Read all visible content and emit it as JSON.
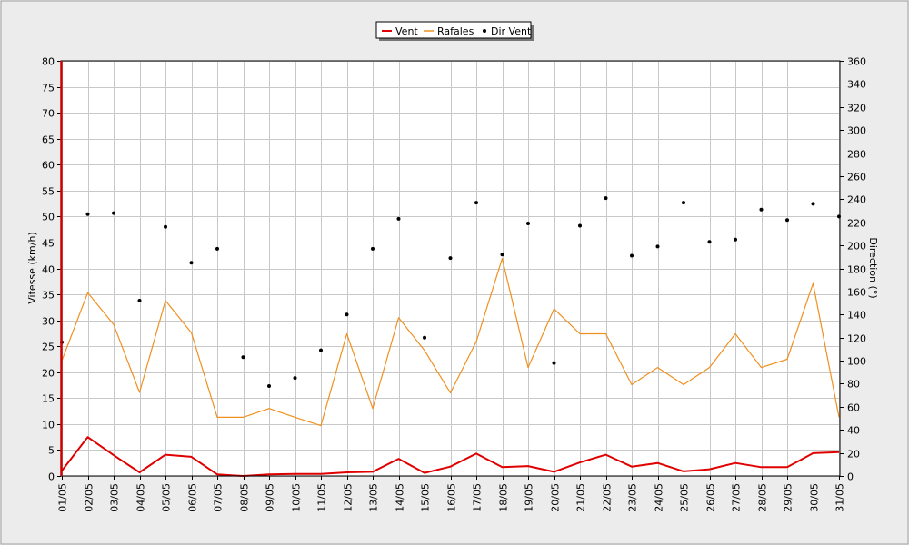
{
  "chart_data": {
    "type": "line",
    "categories": [
      "01/05",
      "02/05",
      "03/05",
      "04/05",
      "05/05",
      "06/05",
      "07/05",
      "08/05",
      "09/05",
      "10/05",
      "11/05",
      "12/05",
      "13/05",
      "14/05",
      "15/05",
      "16/05",
      "17/05",
      "18/05",
      "19/05",
      "20/05",
      "21/05",
      "22/05",
      "23/05",
      "24/05",
      "25/05",
      "26/05",
      "27/05",
      "28/05",
      "29/05",
      "30/05",
      "31/05"
    ],
    "ylabel": "Vitesse (km/h)",
    "ylim": [
      0,
      80
    ],
    "yticks": [
      0,
      5,
      10,
      15,
      20,
      25,
      30,
      35,
      40,
      45,
      50,
      55,
      60,
      65,
      70,
      75,
      80
    ],
    "y2label": "Direction (°)",
    "y2lim": [
      0,
      360
    ],
    "y2ticks": [
      0,
      20,
      40,
      60,
      80,
      100,
      120,
      140,
      160,
      180,
      200,
      220,
      240,
      260,
      280,
      300,
      320,
      340,
      360
    ],
    "grid": true,
    "legend_position": "top-center",
    "series": [
      {
        "name": "Vent",
        "axis": "left",
        "kind": "line",
        "color": "#e00000",
        "values": [
          1.0,
          7.5,
          4.0,
          0.7,
          4.1,
          3.7,
          0.3,
          0.0,
          0.3,
          0.4,
          0.4,
          0.7,
          0.8,
          3.3,
          0.6,
          1.8,
          4.3,
          1.7,
          1.9,
          0.8,
          2.6,
          4.1,
          1.8,
          2.5,
          0.9,
          1.3,
          2.5,
          1.7,
          1.7,
          4.4,
          4.6
        ]
      },
      {
        "name": "Rafales",
        "axis": "left",
        "kind": "line",
        "color": "#f0901e",
        "values": [
          22.2,
          35.3,
          29.2,
          16.1,
          33.8,
          27.6,
          11.3,
          11.3,
          13.0,
          11.3,
          9.7,
          27.4,
          13.0,
          30.5,
          24.2,
          16.0,
          25.9,
          41.9,
          20.9,
          32.2,
          27.4,
          27.4,
          17.6,
          20.9,
          17.6,
          20.9,
          27.4,
          20.9,
          22.5,
          37.1,
          11.3
        ]
      },
      {
        "name": "Dir Vent",
        "axis": "right",
        "kind": "scatter",
        "color": "#000000",
        "values": [
          116,
          227,
          228,
          152,
          216,
          185,
          197,
          103,
          78,
          85,
          109,
          140,
          197,
          223,
          120,
          189,
          237,
          192,
          219,
          98,
          217,
          241,
          191,
          199,
          237,
          203,
          205,
          231,
          222,
          236,
          225
        ]
      }
    ]
  }
}
